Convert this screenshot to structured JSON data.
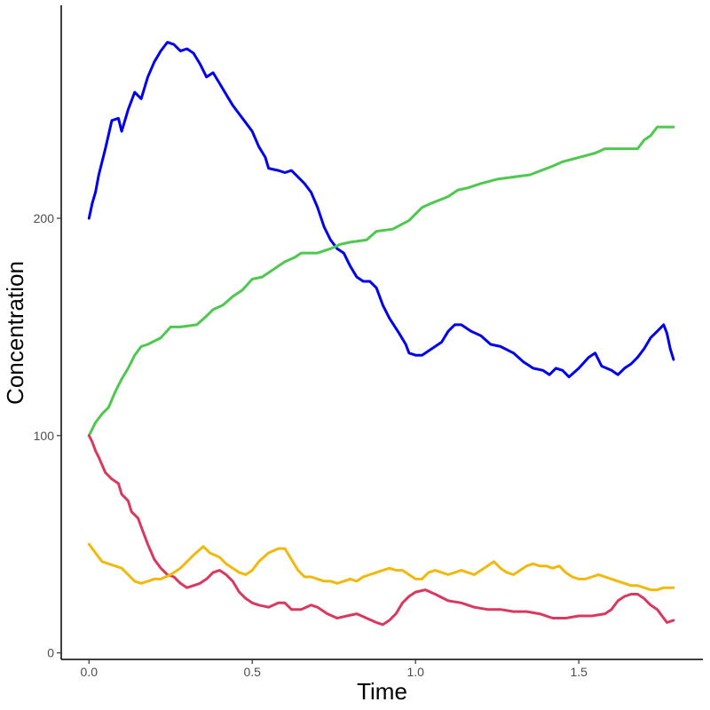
{
  "chart_data": {
    "type": "line",
    "title": "",
    "xlabel": "Time",
    "ylabel": "Concentration",
    "xlim": [
      -0.085,
      1.88
    ],
    "ylim": [
      -3,
      298
    ],
    "x_ticks": [
      0.0,
      0.5,
      1.0,
      1.5
    ],
    "x_tick_labels": [
      "0.0",
      "0.5",
      "1.0",
      "1.5"
    ],
    "y_ticks": [
      0,
      100,
      200
    ],
    "y_tick_labels": [
      "0",
      "100",
      "200"
    ],
    "grid": false,
    "legend": "none",
    "series": [
      {
        "color": "#0000ee",
        "points": [
          [
            0.0,
            200
          ],
          [
            0.01,
            207
          ],
          [
            0.02,
            212
          ],
          [
            0.03,
            220
          ],
          [
            0.05,
            232
          ],
          [
            0.07,
            245
          ],
          [
            0.09,
            246
          ],
          [
            0.1,
            240
          ],
          [
            0.12,
            250
          ],
          [
            0.14,
            258
          ],
          [
            0.16,
            255
          ],
          [
            0.18,
            265
          ],
          [
            0.2,
            272
          ],
          [
            0.22,
            277
          ],
          [
            0.24,
            281
          ],
          [
            0.26,
            280
          ],
          [
            0.28,
            277
          ],
          [
            0.3,
            278
          ],
          [
            0.32,
            276
          ],
          [
            0.34,
            271
          ],
          [
            0.36,
            265
          ],
          [
            0.38,
            267
          ],
          [
            0.4,
            262
          ],
          [
            0.42,
            257
          ],
          [
            0.44,
            252
          ],
          [
            0.46,
            248
          ],
          [
            0.48,
            244
          ],
          [
            0.5,
            240
          ],
          [
            0.52,
            233
          ],
          [
            0.54,
            228
          ],
          [
            0.55,
            223
          ],
          [
            0.58,
            222
          ],
          [
            0.6,
            221
          ],
          [
            0.62,
            222
          ],
          [
            0.64,
            219
          ],
          [
            0.66,
            216
          ],
          [
            0.68,
            212
          ],
          [
            0.7,
            205
          ],
          [
            0.72,
            196
          ],
          [
            0.74,
            190
          ],
          [
            0.76,
            186
          ],
          [
            0.78,
            184
          ],
          [
            0.8,
            178
          ],
          [
            0.82,
            173
          ],
          [
            0.84,
            171
          ],
          [
            0.86,
            171
          ],
          [
            0.88,
            168
          ],
          [
            0.9,
            160
          ],
          [
            0.92,
            154
          ],
          [
            0.95,
            147
          ],
          [
            0.97,
            142
          ],
          [
            0.98,
            138
          ],
          [
            1.0,
            137
          ],
          [
            1.02,
            137
          ],
          [
            1.05,
            140
          ],
          [
            1.08,
            143
          ],
          [
            1.1,
            148
          ],
          [
            1.12,
            151
          ],
          [
            1.14,
            151
          ],
          [
            1.17,
            148
          ],
          [
            1.2,
            146
          ],
          [
            1.23,
            142
          ],
          [
            1.26,
            141
          ],
          [
            1.3,
            138
          ],
          [
            1.33,
            134
          ],
          [
            1.36,
            131
          ],
          [
            1.39,
            130
          ],
          [
            1.41,
            128
          ],
          [
            1.43,
            131
          ],
          [
            1.45,
            130
          ],
          [
            1.47,
            127
          ],
          [
            1.5,
            131
          ],
          [
            1.53,
            136
          ],
          [
            1.55,
            138
          ],
          [
            1.57,
            132
          ],
          [
            1.6,
            130
          ],
          [
            1.62,
            128
          ],
          [
            1.64,
            131
          ],
          [
            1.66,
            133
          ],
          [
            1.68,
            136
          ],
          [
            1.7,
            140
          ],
          [
            1.72,
            145
          ],
          [
            1.74,
            148
          ],
          [
            1.76,
            151
          ],
          [
            1.77,
            147
          ],
          [
            1.78,
            140
          ],
          [
            1.79,
            135
          ]
        ]
      },
      {
        "color": "#4ec84e",
        "points": [
          [
            0.0,
            100
          ],
          [
            0.02,
            106
          ],
          [
            0.04,
            110
          ],
          [
            0.06,
            113
          ],
          [
            0.08,
            120
          ],
          [
            0.1,
            126
          ],
          [
            0.12,
            131
          ],
          [
            0.14,
            137
          ],
          [
            0.16,
            141
          ],
          [
            0.18,
            142
          ],
          [
            0.22,
            145
          ],
          [
            0.25,
            150
          ],
          [
            0.28,
            150
          ],
          [
            0.33,
            151
          ],
          [
            0.36,
            155
          ],
          [
            0.38,
            158
          ],
          [
            0.41,
            160
          ],
          [
            0.44,
            164
          ],
          [
            0.47,
            167
          ],
          [
            0.5,
            172
          ],
          [
            0.53,
            173
          ],
          [
            0.55,
            175
          ],
          [
            0.58,
            178
          ],
          [
            0.6,
            180
          ],
          [
            0.63,
            182
          ],
          [
            0.65,
            184
          ],
          [
            0.7,
            184
          ],
          [
            0.74,
            186
          ],
          [
            0.77,
            188
          ],
          [
            0.8,
            189
          ],
          [
            0.85,
            190
          ],
          [
            0.88,
            194
          ],
          [
            0.93,
            195
          ],
          [
            0.98,
            199
          ],
          [
            1.0,
            202
          ],
          [
            1.02,
            205
          ],
          [
            1.05,
            207
          ],
          [
            1.1,
            210
          ],
          [
            1.13,
            213
          ],
          [
            1.16,
            214
          ],
          [
            1.2,
            216
          ],
          [
            1.25,
            218
          ],
          [
            1.35,
            220
          ],
          [
            1.42,
            224
          ],
          [
            1.45,
            226
          ],
          [
            1.5,
            228
          ],
          [
            1.55,
            230
          ],
          [
            1.58,
            232
          ],
          [
            1.68,
            232
          ],
          [
            1.7,
            236
          ],
          [
            1.72,
            238
          ],
          [
            1.74,
            242
          ],
          [
            1.79,
            242
          ]
        ]
      },
      {
        "color": "#d9395f",
        "points": [
          [
            0.0,
            100
          ],
          [
            0.01,
            97
          ],
          [
            0.02,
            93
          ],
          [
            0.03,
            90
          ],
          [
            0.05,
            83
          ],
          [
            0.07,
            80
          ],
          [
            0.09,
            78
          ],
          [
            0.1,
            73
          ],
          [
            0.12,
            70
          ],
          [
            0.13,
            65
          ],
          [
            0.15,
            62
          ],
          [
            0.16,
            58
          ],
          [
            0.18,
            50
          ],
          [
            0.2,
            43
          ],
          [
            0.22,
            39
          ],
          [
            0.24,
            36
          ],
          [
            0.26,
            35
          ],
          [
            0.28,
            32
          ],
          [
            0.3,
            30
          ],
          [
            0.32,
            31
          ],
          [
            0.34,
            32
          ],
          [
            0.36,
            34
          ],
          [
            0.38,
            37
          ],
          [
            0.4,
            38
          ],
          [
            0.42,
            36
          ],
          [
            0.44,
            33
          ],
          [
            0.46,
            28
          ],
          [
            0.48,
            25
          ],
          [
            0.5,
            23
          ],
          [
            0.52,
            22
          ],
          [
            0.55,
            21
          ],
          [
            0.58,
            23
          ],
          [
            0.6,
            23
          ],
          [
            0.62,
            20
          ],
          [
            0.65,
            20
          ],
          [
            0.68,
            22
          ],
          [
            0.7,
            21
          ],
          [
            0.73,
            18
          ],
          [
            0.76,
            16
          ],
          [
            0.79,
            17
          ],
          [
            0.82,
            18
          ],
          [
            0.85,
            16
          ],
          [
            0.88,
            14
          ],
          [
            0.9,
            13
          ],
          [
            0.92,
            15
          ],
          [
            0.94,
            18
          ],
          [
            0.96,
            23
          ],
          [
            0.98,
            26
          ],
          [
            1.0,
            28
          ],
          [
            1.03,
            29
          ],
          [
            1.06,
            27
          ],
          [
            1.1,
            24
          ],
          [
            1.14,
            23
          ],
          [
            1.18,
            21
          ],
          [
            1.22,
            20
          ],
          [
            1.26,
            20
          ],
          [
            1.3,
            19
          ],
          [
            1.34,
            19
          ],
          [
            1.38,
            18
          ],
          [
            1.42,
            16
          ],
          [
            1.46,
            16
          ],
          [
            1.5,
            17
          ],
          [
            1.54,
            17
          ],
          [
            1.58,
            18
          ],
          [
            1.6,
            20
          ],
          [
            1.62,
            24
          ],
          [
            1.64,
            26
          ],
          [
            1.66,
            27
          ],
          [
            1.68,
            27
          ],
          [
            1.7,
            25
          ],
          [
            1.72,
            22
          ],
          [
            1.74,
            20
          ],
          [
            1.76,
            16
          ],
          [
            1.77,
            14
          ],
          [
            1.79,
            15
          ]
        ]
      },
      {
        "color": "#f0b90b",
        "points": [
          [
            0.0,
            50
          ],
          [
            0.02,
            46
          ],
          [
            0.04,
            42
          ],
          [
            0.06,
            41
          ],
          [
            0.08,
            40
          ],
          [
            0.1,
            39
          ],
          [
            0.12,
            36
          ],
          [
            0.14,
            33
          ],
          [
            0.16,
            32
          ],
          [
            0.18,
            33
          ],
          [
            0.2,
            34
          ],
          [
            0.22,
            34
          ],
          [
            0.25,
            36
          ],
          [
            0.28,
            39
          ],
          [
            0.3,
            42
          ],
          [
            0.32,
            45
          ],
          [
            0.35,
            49
          ],
          [
            0.37,
            46
          ],
          [
            0.4,
            44
          ],
          [
            0.42,
            41
          ],
          [
            0.44,
            39
          ],
          [
            0.46,
            37
          ],
          [
            0.48,
            36
          ],
          [
            0.5,
            38
          ],
          [
            0.52,
            42
          ],
          [
            0.55,
            46
          ],
          [
            0.58,
            48
          ],
          [
            0.6,
            48
          ],
          [
            0.62,
            43
          ],
          [
            0.64,
            38
          ],
          [
            0.66,
            35
          ],
          [
            0.68,
            35
          ],
          [
            0.7,
            34
          ],
          [
            0.72,
            33
          ],
          [
            0.74,
            33
          ],
          [
            0.76,
            32
          ],
          [
            0.78,
            33
          ],
          [
            0.8,
            34
          ],
          [
            0.82,
            33
          ],
          [
            0.84,
            35
          ],
          [
            0.86,
            36
          ],
          [
            0.88,
            37
          ],
          [
            0.9,
            38
          ],
          [
            0.92,
            39
          ],
          [
            0.94,
            38
          ],
          [
            0.96,
            38
          ],
          [
            0.98,
            36
          ],
          [
            1.0,
            34
          ],
          [
            1.02,
            34
          ],
          [
            1.04,
            37
          ],
          [
            1.06,
            38
          ],
          [
            1.08,
            37
          ],
          [
            1.1,
            36
          ],
          [
            1.12,
            37
          ],
          [
            1.14,
            38
          ],
          [
            1.16,
            37
          ],
          [
            1.18,
            36
          ],
          [
            1.2,
            38
          ],
          [
            1.22,
            40
          ],
          [
            1.24,
            42
          ],
          [
            1.26,
            39
          ],
          [
            1.28,
            37
          ],
          [
            1.3,
            36
          ],
          [
            1.32,
            38
          ],
          [
            1.34,
            40
          ],
          [
            1.36,
            41
          ],
          [
            1.38,
            40
          ],
          [
            1.4,
            40
          ],
          [
            1.42,
            39
          ],
          [
            1.44,
            40
          ],
          [
            1.46,
            37
          ],
          [
            1.48,
            35
          ],
          [
            1.5,
            34
          ],
          [
            1.52,
            34
          ],
          [
            1.54,
            35
          ],
          [
            1.56,
            36
          ],
          [
            1.58,
            35
          ],
          [
            1.6,
            34
          ],
          [
            1.62,
            33
          ],
          [
            1.64,
            32
          ],
          [
            1.66,
            31
          ],
          [
            1.68,
            31
          ],
          [
            1.7,
            30
          ],
          [
            1.72,
            29
          ],
          [
            1.74,
            29
          ],
          [
            1.76,
            30
          ],
          [
            1.78,
            30
          ],
          [
            1.79,
            30
          ]
        ]
      }
    ]
  }
}
